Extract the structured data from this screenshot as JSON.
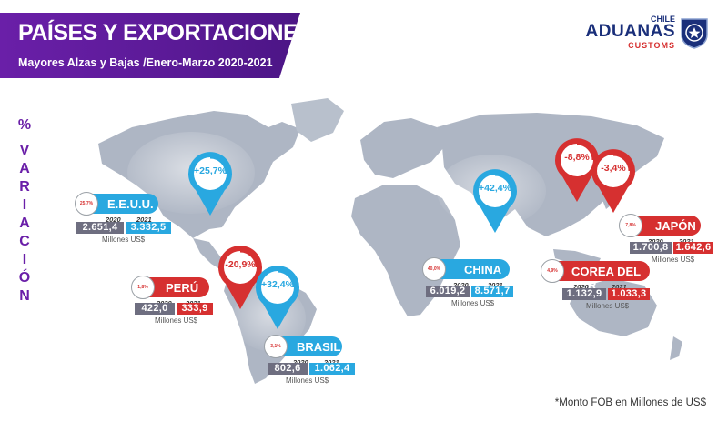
{
  "header": {
    "title": "PAÍSES Y EXPORTACIONES",
    "subtitle": "Mayores Alzas y Bajas /Enero-Marzo 2020-2021"
  },
  "logo": {
    "top": "CHILE",
    "main": "ADUANAS",
    "bottom": "CUSTOMS"
  },
  "side_label": [
    "%",
    "V",
    "A",
    "R",
    "I",
    "A",
    "C",
    "I",
    "Ó",
    "N"
  ],
  "year_labels": {
    "y2020": "2020",
    "y2021": "2021"
  },
  "unit": "Millones US$",
  "colors": {
    "up": "#29a8e0",
    "down": "#d63030",
    "old": "#6e6e80",
    "brand": "#6a1fa8"
  },
  "countries": [
    {
      "name": "E.E.U.U.",
      "trend": "up",
      "variation": "+25,7%",
      "mini": "25,7%",
      "v2020": "2.651,4",
      "v2021": "3.332,5"
    },
    {
      "name": "PERÚ",
      "trend": "down",
      "variation": "-20,9%",
      "mini": "1,8%",
      "v2020": "422,0",
      "v2021": "333,9"
    },
    {
      "name": "BRASIL",
      "trend": "up",
      "variation": "+32,4%",
      "mini": "3,1%",
      "v2020": "802,6",
      "v2021": "1.062,4"
    },
    {
      "name": "CHINA",
      "trend": "up",
      "variation": "+42,4%",
      "mini": "40,0%",
      "v2020": "6.019,2",
      "v2021": "8.571,7"
    },
    {
      "name": "COREA DEL SUR",
      "trend": "down",
      "variation": "-8,8%",
      "mini": "4,9%",
      "v2020": "1.132,9",
      "v2021": "1.033,3"
    },
    {
      "name": "JAPÓN",
      "trend": "down",
      "variation": "-3,4%",
      "mini": "7,8%",
      "v2020": "1.700,8",
      "v2021": "1.642,6"
    }
  ],
  "footnote": "*Monto FOB en Millones de US$"
}
